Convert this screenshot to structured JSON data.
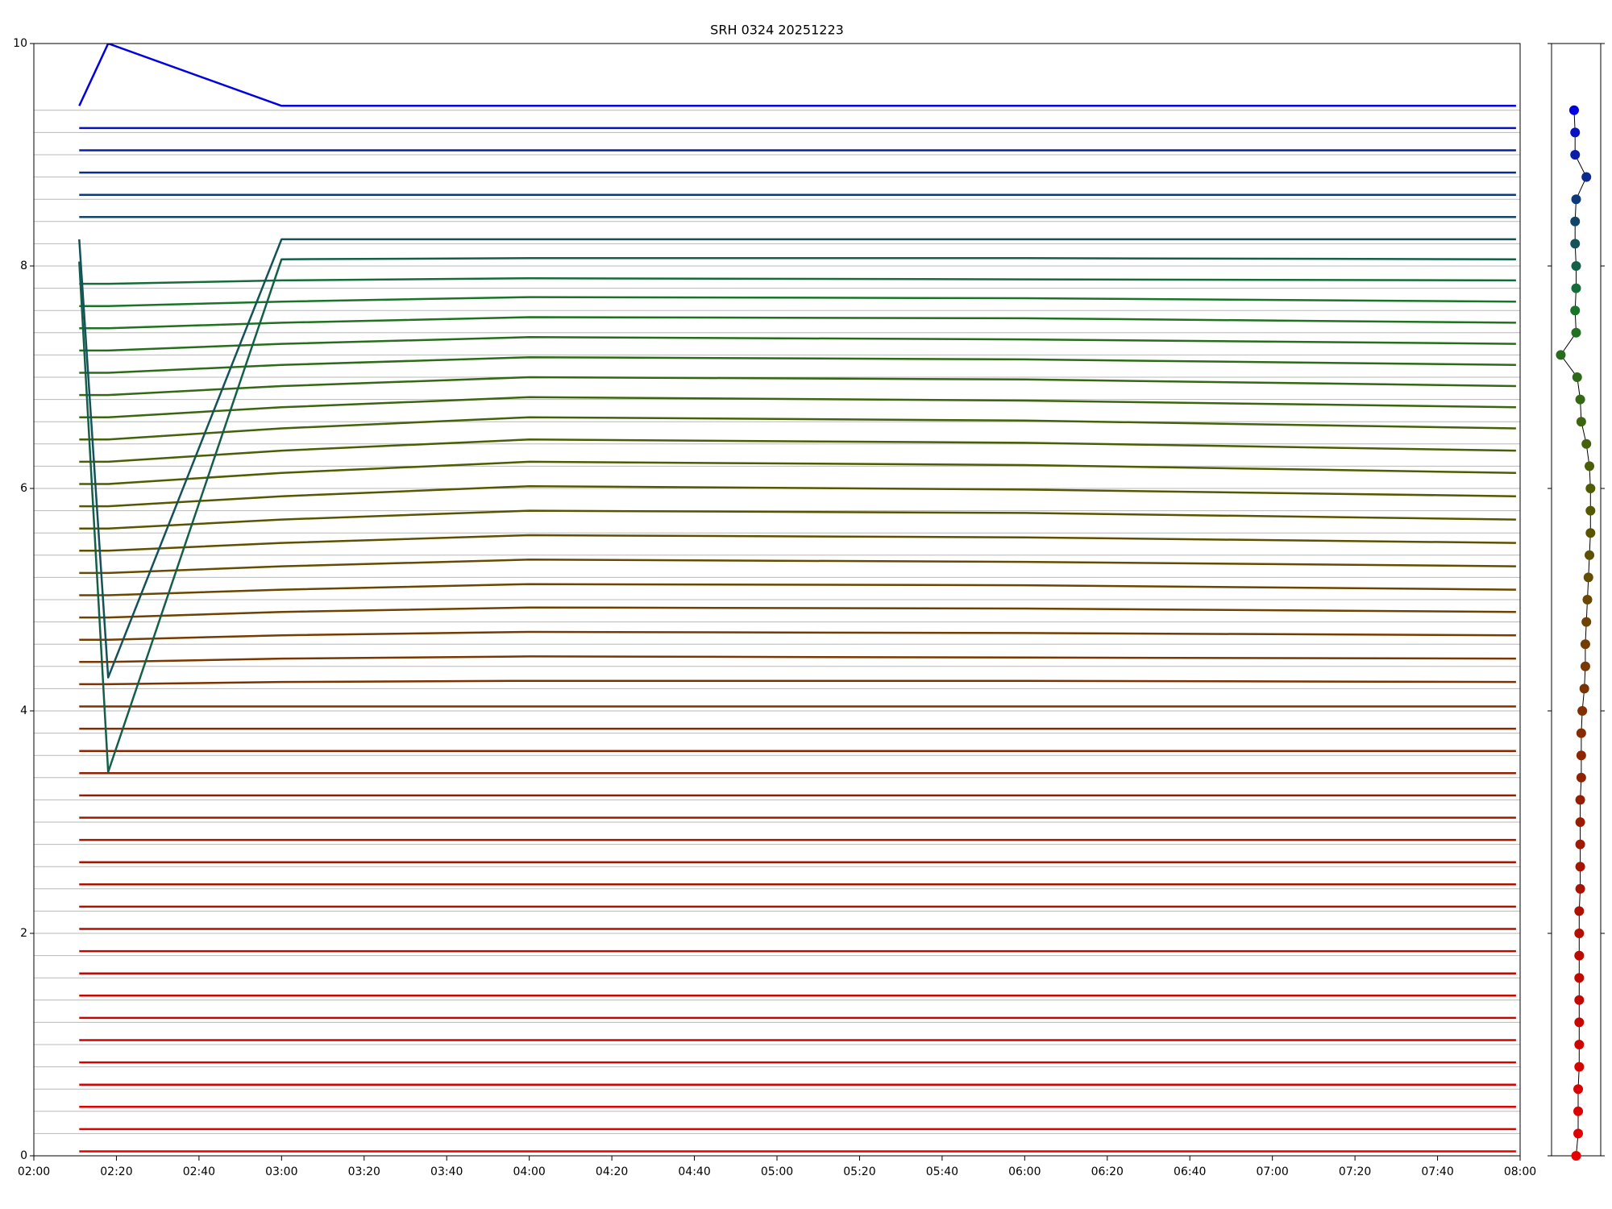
{
  "chart_data": [
    {
      "type": "line",
      "title": "SRH 0324 20251223",
      "x": [
        "02:11",
        "02:18",
        "03:00",
        "04:00",
        "06:00",
        "07:59"
      ],
      "xlim": [
        "02:00",
        "08:00"
      ],
      "xticks": [
        "02:00",
        "02:20",
        "02:40",
        "03:00",
        "03:20",
        "03:40",
        "04:00",
        "04:20",
        "04:40",
        "05:00",
        "05:20",
        "05:40",
        "06:00",
        "06:20",
        "06:40",
        "07:00",
        "07:20",
        "07:40",
        "08:00"
      ],
      "ylim": [
        0,
        10
      ],
      "yticks": [
        0,
        2,
        4,
        6,
        8,
        10
      ],
      "series": [
        {
          "color": "#e60000",
          "baseline": 0,
          "values": [
            0.04,
            0.04,
            0.04,
            0.04,
            0.04,
            0.04
          ]
        },
        {
          "color": "#e10000",
          "baseline": 0.2,
          "values": [
            0.24,
            0.24,
            0.24,
            0.24,
            0.24,
            0.24
          ]
        },
        {
          "color": "#dc0200",
          "baseline": 0.4,
          "values": [
            0.44,
            0.44,
            0.44,
            0.44,
            0.44,
            0.44
          ]
        },
        {
          "color": "#d70300",
          "baseline": 0.6,
          "values": [
            0.64,
            0.64,
            0.64,
            0.64,
            0.64,
            0.64
          ]
        },
        {
          "color": "#d20400",
          "baseline": 0.8,
          "values": [
            0.84,
            0.84,
            0.84,
            0.84,
            0.84,
            0.84
          ]
        },
        {
          "color": "#cd0500",
          "baseline": 1.0,
          "values": [
            1.04,
            1.04,
            1.04,
            1.04,
            1.04,
            1.04
          ]
        },
        {
          "color": "#c80600",
          "baseline": 1.2,
          "values": [
            1.24,
            1.24,
            1.24,
            1.24,
            1.24,
            1.24
          ]
        },
        {
          "color": "#c30800",
          "baseline": 1.4,
          "values": [
            1.44,
            1.44,
            1.44,
            1.44,
            1.44,
            1.44
          ]
        },
        {
          "color": "#be0a00",
          "baseline": 1.6,
          "values": [
            1.64,
            1.64,
            1.64,
            1.64,
            1.64,
            1.64
          ]
        },
        {
          "color": "#b90c00",
          "baseline": 1.8,
          "values": [
            1.84,
            1.84,
            1.84,
            1.84,
            1.84,
            1.84
          ]
        },
        {
          "color": "#b40e00",
          "baseline": 2.0,
          "values": [
            2.04,
            2.04,
            2.04,
            2.04,
            2.04,
            2.04
          ]
        },
        {
          "color": "#af1000",
          "baseline": 2.2,
          "values": [
            2.24,
            2.24,
            2.24,
            2.24,
            2.24,
            2.24
          ]
        },
        {
          "color": "#aa1200",
          "baseline": 2.4,
          "values": [
            2.44,
            2.44,
            2.44,
            2.44,
            2.44,
            2.44
          ]
        },
        {
          "color": "#a51500",
          "baseline": 2.6,
          "values": [
            2.64,
            2.64,
            2.64,
            2.64,
            2.64,
            2.64
          ]
        },
        {
          "color": "#a01800",
          "baseline": 2.8,
          "values": [
            2.84,
            2.84,
            2.84,
            2.84,
            2.84,
            2.84
          ]
        },
        {
          "color": "#9b1b00",
          "baseline": 3.0,
          "values": [
            3.04,
            3.04,
            3.04,
            3.04,
            3.04,
            3.04
          ]
        },
        {
          "color": "#961e00",
          "baseline": 3.2,
          "values": [
            3.24,
            3.24,
            3.24,
            3.24,
            3.24,
            3.24
          ]
        },
        {
          "color": "#912200",
          "baseline": 3.4,
          "values": [
            3.44,
            3.44,
            3.44,
            3.44,
            3.44,
            3.44
          ]
        },
        {
          "color": "#8c2600",
          "baseline": 3.6,
          "values": [
            3.64,
            3.64,
            3.64,
            3.64,
            3.64,
            3.64
          ]
        },
        {
          "color": "#872a00",
          "baseline": 3.8,
          "values": [
            3.84,
            3.84,
            3.84,
            3.84,
            3.84,
            3.84
          ]
        },
        {
          "color": "#822e00",
          "baseline": 4.0,
          "values": [
            4.04,
            4.04,
            4.04,
            4.04,
            4.04,
            4.04
          ]
        },
        {
          "color": "#7d3300",
          "baseline": 4.2,
          "values": [
            4.24,
            4.24,
            4.26,
            4.27,
            4.27,
            4.26
          ]
        },
        {
          "color": "#783800",
          "baseline": 4.4,
          "values": [
            4.44,
            4.44,
            4.47,
            4.49,
            4.48,
            4.47
          ]
        },
        {
          "color": "#733d00",
          "baseline": 4.6,
          "values": [
            4.64,
            4.64,
            4.68,
            4.71,
            4.7,
            4.68
          ]
        },
        {
          "color": "#6e4200",
          "baseline": 4.8,
          "values": [
            4.84,
            4.84,
            4.89,
            4.93,
            4.92,
            4.89
          ]
        },
        {
          "color": "#694700",
          "baseline": 5.0,
          "values": [
            5.04,
            5.04,
            5.09,
            5.14,
            5.13,
            5.09
          ]
        },
        {
          "color": "#644c00",
          "baseline": 5.2,
          "values": [
            5.24,
            5.24,
            5.3,
            5.36,
            5.34,
            5.3
          ]
        },
        {
          "color": "#5f5000",
          "baseline": 5.4,
          "values": [
            5.44,
            5.44,
            5.51,
            5.58,
            5.56,
            5.51
          ]
        },
        {
          "color": "#5a5400",
          "baseline": 5.6,
          "values": [
            5.64,
            5.64,
            5.72,
            5.8,
            5.78,
            5.72
          ]
        },
        {
          "color": "#555800",
          "baseline": 5.8,
          "values": [
            5.84,
            5.84,
            5.93,
            6.02,
            5.99,
            5.93
          ]
        },
        {
          "color": "#4f5c00",
          "baseline": 6.0,
          "values": [
            6.04,
            6.04,
            6.14,
            6.24,
            6.21,
            6.14
          ]
        },
        {
          "color": "#495f05",
          "baseline": 6.2,
          "values": [
            6.24,
            6.24,
            6.34,
            6.44,
            6.41,
            6.34
          ]
        },
        {
          "color": "#43620a",
          "baseline": 6.4,
          "values": [
            6.44,
            6.44,
            6.54,
            6.64,
            6.61,
            6.54
          ]
        },
        {
          "color": "#3c650f",
          "baseline": 6.6,
          "values": [
            6.64,
            6.64,
            6.73,
            6.82,
            6.79,
            6.73
          ]
        },
        {
          "color": "#356814",
          "baseline": 6.8,
          "values": [
            6.84,
            6.84,
            6.92,
            7.0,
            6.98,
            6.92
          ]
        },
        {
          "color": "#2e6b18",
          "baseline": 7.0,
          "values": [
            7.04,
            7.04,
            7.11,
            7.18,
            7.16,
            7.11
          ]
        },
        {
          "color": "#276e1c",
          "baseline": 7.2,
          "values": [
            7.24,
            7.24,
            7.3,
            7.36,
            7.34,
            7.3
          ]
        },
        {
          "color": "#207120",
          "baseline": 7.4,
          "values": [
            7.44,
            7.44,
            7.49,
            7.54,
            7.53,
            7.49
          ]
        },
        {
          "color": "#1a7428",
          "baseline": 7.6,
          "values": [
            7.64,
            7.64,
            7.68,
            7.72,
            7.71,
            7.68
          ]
        },
        {
          "color": "#166c38",
          "baseline": 7.8,
          "values": [
            7.84,
            7.84,
            7.87,
            7.89,
            7.88,
            7.87
          ]
        },
        {
          "color": "#135f48",
          "baseline": 8.0,
          "values": [
            8.04,
            3.45,
            8.06,
            8.07,
            8.07,
            8.06
          ]
        },
        {
          "color": "#125258",
          "baseline": 8.2,
          "values": [
            8.24,
            4.3,
            8.24,
            8.24,
            8.24,
            8.24
          ]
        },
        {
          "color": "#104568",
          "baseline": 8.4,
          "values": [
            8.44,
            8.44,
            8.44,
            8.44,
            8.44,
            8.44
          ]
        },
        {
          "color": "#0e3878",
          "baseline": 8.6,
          "values": [
            8.64,
            8.64,
            8.64,
            8.64,
            8.64,
            8.64
          ]
        },
        {
          "color": "#0c2b90",
          "baseline": 8.8,
          "values": [
            8.84,
            8.84,
            8.84,
            8.84,
            8.84,
            8.84
          ]
        },
        {
          "color": "#0a1ea8",
          "baseline": 9.0,
          "values": [
            9.04,
            9.04,
            9.04,
            9.04,
            9.04,
            9.04
          ]
        },
        {
          "color": "#0611c4",
          "baseline": 9.2,
          "values": [
            9.24,
            9.24,
            9.24,
            9.24,
            9.24,
            9.24
          ]
        },
        {
          "color": "#0000e0",
          "baseline": 9.4,
          "values": [
            9.44,
            10,
            9.44,
            9.44,
            9.44,
            9.44
          ]
        }
      ]
    },
    {
      "type": "scatter",
      "xlim": [
        0,
        48
      ],
      "ylim": [
        0,
        10
      ],
      "yticks": [
        0,
        2,
        4,
        6,
        8,
        10
      ],
      "line_color": "#000000",
      "x": [
        24,
        26,
        26,
        26,
        27,
        27,
        27,
        27,
        27,
        27,
        27,
        27,
        28,
        28,
        28,
        28,
        28,
        29,
        29,
        29,
        30,
        32,
        33,
        33,
        34,
        35,
        36,
        37,
        38,
        38,
        38,
        37,
        34,
        29,
        28,
        25,
        9,
        24,
        23,
        24,
        24,
        23,
        23,
        24,
        34,
        23,
        23,
        22
      ],
      "values": [
        0,
        0.2,
        0.4,
        0.6,
        0.8,
        1.0,
        1.2,
        1.4,
        1.6,
        1.8,
        2.0,
        2.2,
        2.4,
        2.6,
        2.8,
        3.0,
        3.2,
        3.4,
        3.6,
        3.8,
        4.0,
        4.2,
        4.4,
        4.6,
        4.8,
        5.0,
        5.2,
        5.4,
        5.6,
        5.8,
        6.0,
        6.2,
        6.4,
        6.6,
        6.8,
        7.0,
        7.2,
        7.4,
        7.6,
        7.8,
        8.0,
        8.2,
        8.4,
        8.6,
        8.8,
        9.0,
        9.2,
        9.4
      ],
      "point_colors": [
        "#e60000",
        "#e10000",
        "#dc0200",
        "#d70300",
        "#d20400",
        "#cd0500",
        "#c80600",
        "#c30800",
        "#be0a00",
        "#b90c00",
        "#b40e00",
        "#af1000",
        "#aa1200",
        "#a51500",
        "#a01800",
        "#9b1b00",
        "#961e00",
        "#912200",
        "#8c2600",
        "#872a00",
        "#822e00",
        "#7d3300",
        "#783800",
        "#733d00",
        "#6e4200",
        "#694700",
        "#644c00",
        "#5f5000",
        "#5a5400",
        "#555800",
        "#4f5c00",
        "#495f05",
        "#43620a",
        "#3c650f",
        "#356814",
        "#2e6b18",
        "#276e1c",
        "#207120",
        "#1a7428",
        "#166c38",
        "#135f48",
        "#125258",
        "#104568",
        "#0e3878",
        "#0c2b90",
        "#0a1ea8",
        "#0611c4",
        "#0000e0"
      ]
    }
  ]
}
